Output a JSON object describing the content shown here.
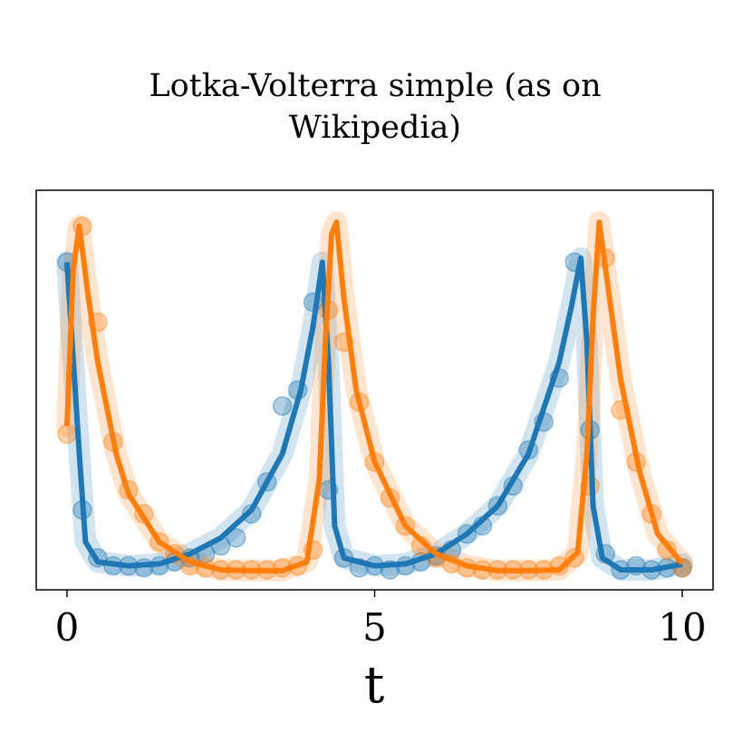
{
  "chart_data": {
    "type": "line",
    "title": "Lotka-Volterra simple (as on Wikipedia)",
    "x_label": "t",
    "xlim": [
      -0.5,
      10.5
    ],
    "xticks": [
      0,
      5,
      10
    ],
    "ylim": [
      0,
      10
    ],
    "series": [
      {
        "color": "#1f77b4",
        "x": [
          0,
          0.2,
          0.3,
          0.5,
          1,
          1.5,
          2,
          2.5,
          3,
          3.5,
          3.8,
          4.0,
          4.15,
          4.25,
          4.35,
          4.5,
          5,
          5.5,
          6,
          6.5,
          7,
          7.5,
          8,
          8.2,
          8.35,
          8.45,
          8.55,
          8.7,
          9,
          9.5,
          10
        ],
        "values": [
          8.2,
          3.4,
          1.2,
          0.7,
          0.6,
          0.65,
          0.9,
          1.3,
          2.0,
          3.4,
          5.0,
          6.6,
          8.2,
          5.7,
          1.6,
          0.8,
          0.6,
          0.65,
          0.9,
          1.4,
          2.1,
          3.4,
          5.7,
          7.1,
          8.3,
          6.2,
          2.1,
          0.8,
          0.5,
          0.5,
          0.64
        ]
      },
      {
        "color": "#ff7f0e",
        "x": [
          0,
          0.1,
          0.2,
          0.35,
          0.5,
          0.8,
          1,
          1.5,
          2,
          2.5,
          3,
          3.5,
          3.9,
          4.1,
          4.2,
          4.3,
          4.38,
          4.5,
          4.7,
          5,
          5.5,
          6,
          6.5,
          7,
          7.5,
          8,
          8.3,
          8.45,
          8.55,
          8.65,
          8.8,
          9,
          9.3,
          9.6,
          10
        ],
        "values": [
          4.1,
          8.0,
          9.1,
          7.3,
          5.7,
          3.4,
          2.4,
          1.2,
          0.7,
          0.5,
          0.48,
          0.48,
          0.7,
          2.75,
          6.2,
          8.9,
          9.2,
          7.3,
          5.0,
          3.2,
          1.6,
          0.9,
          0.6,
          0.48,
          0.48,
          0.5,
          0.93,
          3.4,
          6.8,
          9.2,
          7.5,
          5.25,
          3.0,
          1.4,
          0.66
        ]
      }
    ],
    "scatter": [
      {
        "color": "#1f77b4",
        "x": [
          0,
          0.25,
          0.5,
          0.75,
          1,
          1.25,
          1.5,
          1.75,
          2,
          2.25,
          2.5,
          2.75,
          3,
          3.25,
          3.5,
          3.75,
          4,
          4.25,
          4.5,
          4.75,
          5,
          5.25,
          5.5,
          5.75,
          6,
          6.25,
          6.5,
          6.75,
          7,
          7.25,
          7.5,
          7.75,
          8,
          8.25,
          8.5,
          8.75,
          9,
          9.25,
          9.5,
          9.75,
          10
        ],
        "values": [
          8.2,
          2.0,
          0.8,
          0.6,
          0.6,
          0.55,
          0.6,
          0.7,
          0.8,
          0.9,
          1.1,
          1.3,
          1.9,
          2.7,
          4.6,
          5.0,
          7.2,
          2.5,
          0.8,
          0.55,
          0.6,
          0.5,
          0.6,
          0.7,
          0.85,
          1.0,
          1.4,
          1.6,
          2.1,
          2.6,
          3.5,
          4.2,
          5.3,
          8.2,
          4.0,
          0.9,
          0.5,
          0.6,
          0.5,
          0.55,
          0.55
        ]
      },
      {
        "color": "#ff7f0e",
        "x": [
          0,
          0.25,
          0.5,
          0.75,
          1,
          1.25,
          1.5,
          1.75,
          2,
          2.25,
          2.5,
          2.75,
          3,
          3.25,
          3.5,
          3.75,
          4,
          4.25,
          4.5,
          4.75,
          5,
          5.25,
          5.5,
          5.75,
          6,
          6.25,
          6.5,
          6.75,
          7,
          7.25,
          7.5,
          7.75,
          8,
          8.25,
          8.5,
          8.75,
          9,
          9.25,
          9.5,
          9.75,
          10
        ],
        "values": [
          3.9,
          9.1,
          6.7,
          3.7,
          2.5,
          1.9,
          1.2,
          0.9,
          0.6,
          0.55,
          0.5,
          0.5,
          0.5,
          0.5,
          0.55,
          0.6,
          1.0,
          7.0,
          6.2,
          4.7,
          3.2,
          2.3,
          1.6,
          1.1,
          0.8,
          0.65,
          0.55,
          0.5,
          0.5,
          0.5,
          0.5,
          0.5,
          0.6,
          0.8,
          2.6,
          8.3,
          4.5,
          3.2,
          1.9,
          1.0,
          0.55
        ]
      }
    ]
  }
}
